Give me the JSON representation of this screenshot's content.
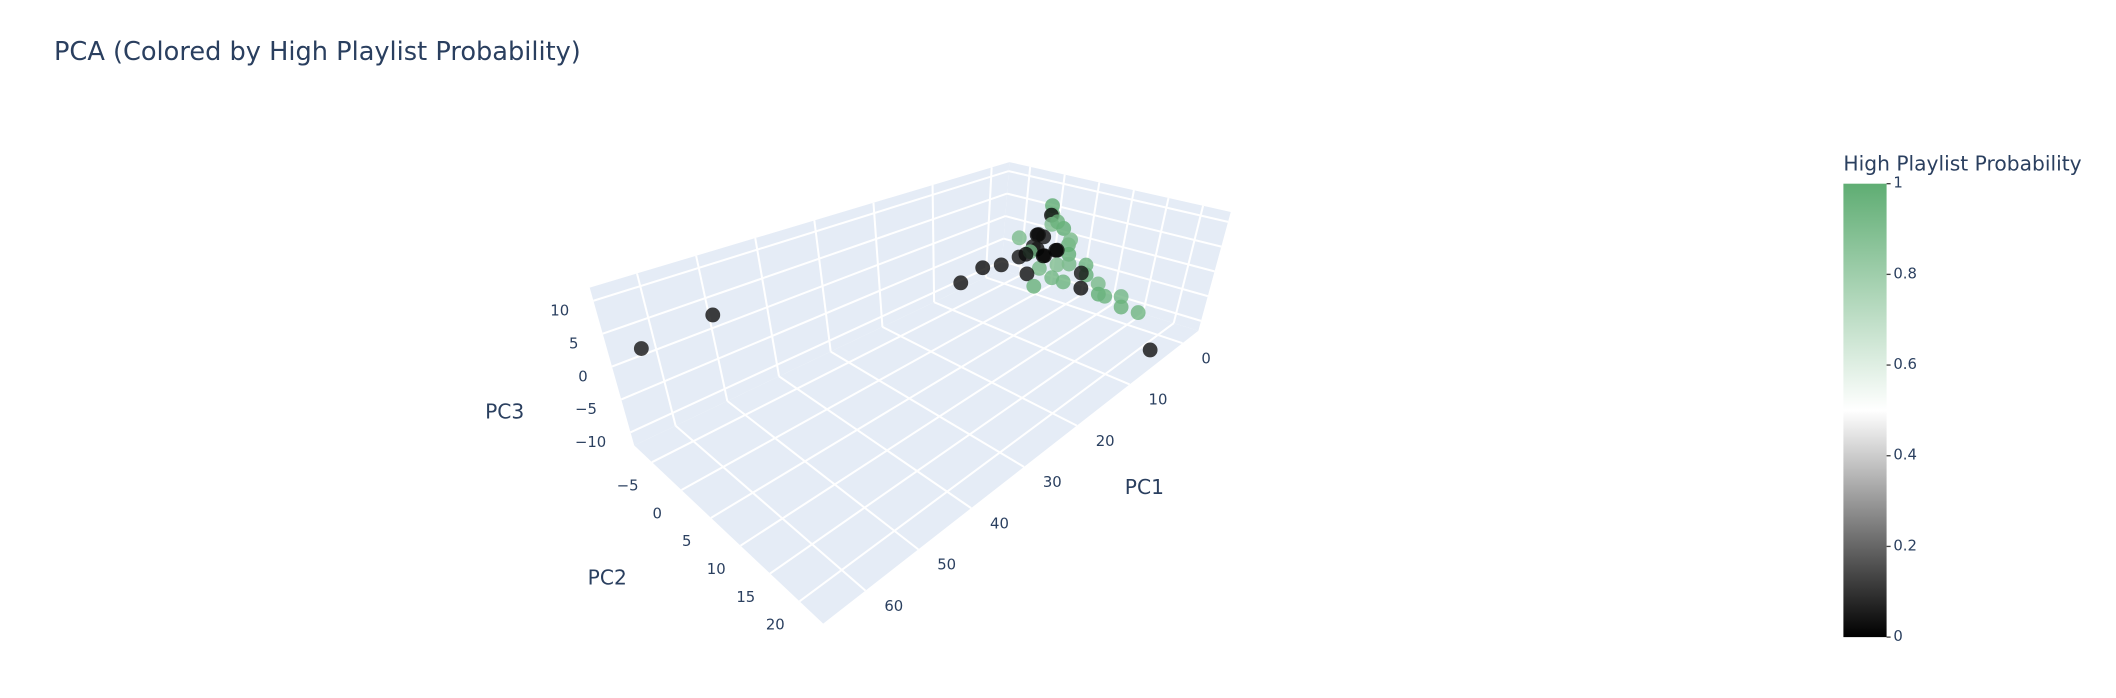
{
  "chart_data": {
    "type": "scatter3d",
    "title": "PCA (Colored by High Playlist Probability)",
    "x_label": "PC1",
    "y_label": "PC2",
    "z_label": "PC3",
    "xlim": [
      -3,
      68
    ],
    "ylim": [
      -8,
      24
    ],
    "zlim": [
      -12,
      12
    ],
    "xticks": [
      0,
      10,
      20,
      30,
      40,
      50,
      60
    ],
    "yticks": [
      {
        "value": -5,
        "label": "−5"
      },
      0,
      5,
      10,
      15,
      20
    ],
    "zticks": [
      {
        "value": -10,
        "label": "−10"
      },
      {
        "value": -5,
        "label": "−5"
      },
      0,
      5,
      10
    ],
    "grid": true,
    "colorbar": {
      "title": "High Playlist Probability",
      "clim": [
        0,
        1
      ],
      "ticks": [
        0,
        0.2,
        0.4,
        0.6,
        0.8,
        1
      ],
      "colorscale": [
        [
          0,
          "#000000"
        ],
        [
          0.5,
          "#ffffff"
        ],
        [
          1,
          "#5fad73"
        ]
      ]
    },
    "series": [
      {
        "x": [
          1,
          2,
          1,
          2,
          1,
          3,
          2,
          1,
          2,
          3,
          1,
          2,
          2,
          3,
          1,
          2,
          1,
          4,
          3,
          5,
          7,
          8,
          12,
          64,
          52,
          4,
          3,
          5,
          2,
          4,
          5,
          3,
          6,
          4,
          3,
          7,
          2,
          1,
          5,
          3,
          2,
          6,
          8,
          4,
          3
        ],
        "y": [
          2,
          3,
          2,
          3,
          4,
          2,
          1,
          5,
          6,
          7,
          8,
          9,
          11,
          12,
          14,
          15,
          17,
          22,
          2,
          1,
          0,
          -2,
          -2,
          -6,
          -5,
          4,
          5,
          3,
          4,
          6,
          8,
          9,
          5,
          0,
          1,
          4,
          6,
          3,
          2,
          3,
          2,
          7,
          6,
          10,
          13
        ],
        "z": [
          8,
          7,
          6,
          5,
          4,
          3,
          2,
          1,
          0,
          -1,
          -2,
          -3,
          -4,
          -5,
          -6,
          -7,
          -8,
          -11,
          0,
          -1,
          -2,
          -3,
          -4,
          3,
          5,
          0,
          1,
          2,
          0,
          -1,
          -3,
          -2,
          -1,
          2,
          -1,
          -2,
          3,
          5,
          0,
          -1,
          2,
          -2,
          -3,
          -4,
          -5
        ],
        "color_values": [
          1,
          0.95,
          0.02,
          0.9,
          1,
          0.05,
          0.01,
          0.97,
          0.99,
          0.93,
          0.96,
          0.98,
          0.92,
          0.99,
          0.94,
          0.97,
          0.95,
          0.03,
          0.02,
          0.04,
          0.03,
          0.02,
          0.03,
          0.04,
          0.03,
          0.01,
          0.02,
          0.05,
          0.01,
          0.9,
          0.96,
          0.04,
          0.93,
          0.91,
          0.94,
          0.03,
          0.92,
          0.97,
          0.02,
          0.01,
          0.03,
          0.95,
          0.97,
          0.02,
          0.96
        ]
      }
    ]
  }
}
